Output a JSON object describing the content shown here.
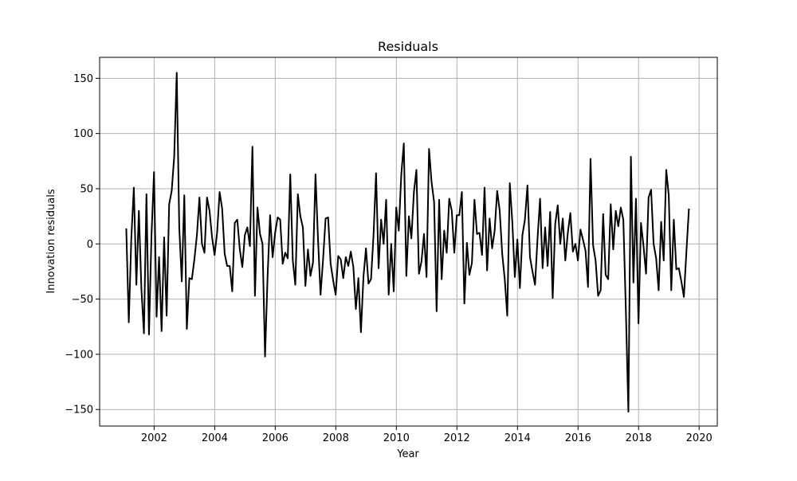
{
  "chart_data": {
    "type": "line",
    "title": "Residuals",
    "xlabel": "Year",
    "ylabel": "Innovation residuals",
    "xlim": [
      2000.2,
      2020.6
    ],
    "ylim": [
      -165,
      169
    ],
    "xticks": [
      2002,
      2004,
      2006,
      2008,
      2010,
      2012,
      2014,
      2016,
      2018,
      2020
    ],
    "yticks": [
      -150,
      -100,
      -50,
      0,
      50,
      100,
      150
    ],
    "grid": true,
    "line_color": "#000000",
    "grid_color": "#b0b0b0",
    "series": [
      {
        "x_start": 2001.08,
        "x_step": 0.083333,
        "values": [
          14,
          -71,
          5,
          51,
          -37,
          30,
          -41,
          -81,
          45,
          -82,
          8,
          65,
          -66,
          -12,
          -79,
          6,
          -65,
          36,
          48,
          79,
          155,
          15,
          -34,
          44,
          -77,
          -31,
          -32,
          -14,
          8,
          42,
          0,
          -8,
          42,
          30,
          6,
          -10,
          10,
          47,
          32,
          -9,
          -20,
          -20,
          -43,
          19,
          22,
          -5,
          -21,
          8,
          15,
          -2,
          88,
          -47,
          33,
          9,
          0,
          -102,
          -30,
          26,
          -12,
          10,
          24,
          22,
          -18,
          -8,
          -13,
          63,
          -15,
          -37,
          45,
          25,
          15,
          -38,
          -5,
          -29,
          -17,
          63,
          4,
          -46,
          -14,
          23,
          24,
          -18,
          -33,
          -46,
          -11,
          -14,
          -31,
          -12,
          -20,
          -7,
          -21,
          -59,
          -31,
          -80,
          -30,
          -4,
          -36,
          -32,
          8,
          64,
          -22,
          22,
          0,
          40,
          -46,
          0,
          -43,
          33,
          12,
          63,
          91,
          -29,
          25,
          5,
          47,
          67,
          -27,
          -16,
          9,
          -30,
          86,
          56,
          38,
          -61,
          40,
          -32,
          12,
          -8,
          41,
          30,
          -8,
          26,
          26,
          47,
          -54,
          1,
          -28,
          -17,
          40,
          9,
          10,
          -10,
          51,
          -24,
          23,
          -4,
          12,
          48,
          30,
          -9,
          -32,
          -65,
          55,
          20,
          -30,
          4,
          -40,
          8,
          22,
          53,
          -12,
          -25,
          -37,
          5,
          41,
          -22,
          15,
          -20,
          29,
          -49,
          18,
          35,
          0,
          23,
          -15,
          10,
          28,
          -7,
          0,
          -15,
          13,
          4,
          -6,
          -39,
          77,
          -1,
          -15,
          -47,
          -42,
          27,
          -28,
          -32,
          36,
          -5,
          30,
          16,
          33,
          22,
          -60,
          -152,
          79,
          -35,
          41,
          -72,
          19,
          -2,
          -27,
          42,
          49,
          0,
          -13,
          -42,
          20,
          -15,
          67,
          44,
          -42,
          22,
          -23,
          -22,
          -34,
          -48,
          -7,
          32
        ]
      }
    ]
  }
}
